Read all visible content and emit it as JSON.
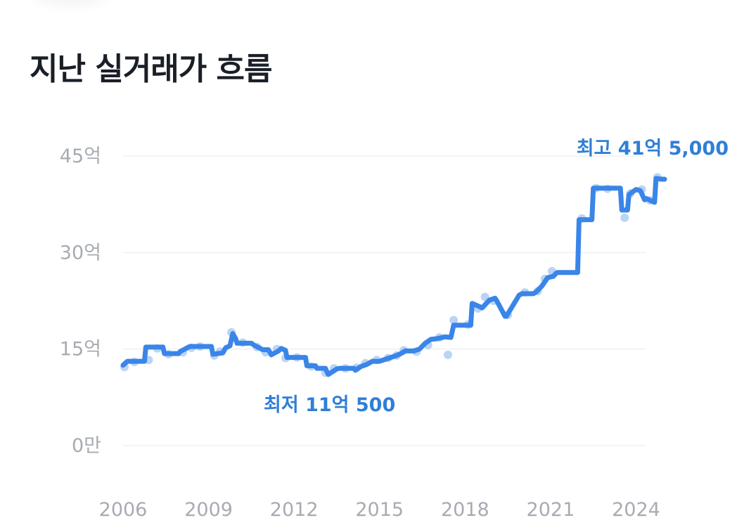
{
  "header": {
    "title": "지난 실거래가 흐름"
  },
  "chart_data": {
    "type": "line",
    "title": "지난 실거래가 흐름",
    "xlabel": "",
    "ylabel": "",
    "y_unit": "억",
    "xlim": [
      2006,
      2025
    ],
    "ylim": [
      0,
      45
    ],
    "grid": true,
    "x_ticks": [
      {
        "value": 2006,
        "label": "2006"
      },
      {
        "value": 2009,
        "label": "2009"
      },
      {
        "value": 2012,
        "label": "2012"
      },
      {
        "value": 2015,
        "label": "2015"
      },
      {
        "value": 2018,
        "label": "2018"
      },
      {
        "value": 2021,
        "label": "2021"
      },
      {
        "value": 2024,
        "label": "2024"
      }
    ],
    "y_ticks": [
      {
        "value": 0,
        "label": "0만"
      },
      {
        "value": 15,
        "label": "15억"
      },
      {
        "value": 30,
        "label": "30억"
      },
      {
        "value": 45,
        "label": "45억"
      }
    ],
    "colors": {
      "line": "#3a85e8",
      "points": "#aecdf3",
      "annotation": "#2f7fd6",
      "grid": "#eef0f2",
      "tick": "#a7abb2"
    },
    "series": [
      {
        "x": [
          2006.0,
          2006.15,
          2006.5,
          2006.75,
          2006.8,
          2007.4,
          2007.45,
          2007.95,
          2008.0,
          2008.3,
          2008.35,
          2009.1,
          2009.15,
          2009.5,
          2009.6,
          2009.75,
          2009.85,
          2009.95,
          2010.0,
          2010.5,
          2010.6,
          2010.9,
          2011.1,
          2011.2,
          2011.45,
          2011.55,
          2011.7,
          2011.75,
          2012.4,
          2012.45,
          2012.75,
          2012.8,
          2013.0,
          2013.1,
          2013.2,
          2013.5,
          2013.6,
          2014.1,
          2014.15,
          2014.35,
          2014.55,
          2014.75,
          2015.0,
          2015.2,
          2015.4,
          2015.6,
          2015.75,
          2015.9,
          2016.2,
          2016.4,
          2016.6,
          2016.8,
          2017.0,
          2017.3,
          2017.5,
          2017.6,
          2017.9,
          2018.2,
          2018.25,
          2018.5,
          2018.6,
          2018.85,
          2019.05,
          2019.1,
          2019.4,
          2019.45,
          2019.9,
          2020.0,
          2020.4,
          2020.5,
          2020.7,
          2020.9,
          2021.1,
          2021.2,
          2021.25,
          2021.95,
          2022.0,
          2022.45,
          2022.5,
          2023.45,
          2023.5,
          2023.7,
          2023.75,
          2023.9,
          2024.0,
          2024.15,
          2024.3,
          2024.35,
          2024.55,
          2024.65,
          2024.7,
          2024.9,
          2025.0
        ],
        "y": [
          12.5,
          13.1,
          13.1,
          13.1,
          15.3,
          15.3,
          14.3,
          14.3,
          14.6,
          15.3,
          15.4,
          15.4,
          14.2,
          14.4,
          15.2,
          15.5,
          17.4,
          16.6,
          15.9,
          15.9,
          15.6,
          14.9,
          14.9,
          14.1,
          14.7,
          15.1,
          14.8,
          13.7,
          13.7,
          12.4,
          12.4,
          12.0,
          12.0,
          12.0,
          11.05,
          11.9,
          12.0,
          12.0,
          11.7,
          12.3,
          12.6,
          13.1,
          13.1,
          13.4,
          13.7,
          14.0,
          14.3,
          14.7,
          14.7,
          15.0,
          15.9,
          16.5,
          16.6,
          16.9,
          16.8,
          18.7,
          18.7,
          18.7,
          22.1,
          21.6,
          21.4,
          22.6,
          22.9,
          22.6,
          20.1,
          20.1,
          23.4,
          23.6,
          23.6,
          23.9,
          24.8,
          26.1,
          26.3,
          26.8,
          26.9,
          26.9,
          35.1,
          35.1,
          40.0,
          40.0,
          36.6,
          36.6,
          39.0,
          39.5,
          39.8,
          39.6,
          38.2,
          38.4,
          38.0,
          37.8,
          41.5,
          41.4,
          41.4
        ]
      }
    ],
    "scatter_points": {
      "x": [
        2006.05,
        2006.4,
        2006.9,
        2007.2,
        2007.6,
        2008.1,
        2008.4,
        2008.7,
        2009.2,
        2009.4,
        2009.8,
        2010.2,
        2010.7,
        2011.0,
        2011.4,
        2011.7,
        2012.1,
        2012.6,
        2013.1,
        2013.4,
        2013.8,
        2014.2,
        2014.5,
        2014.9,
        2015.3,
        2015.6,
        2015.85,
        2016.3,
        2016.7,
        2017.1,
        2017.4,
        2017.6,
        2018.1,
        2018.45,
        2018.7,
        2019.0,
        2019.5,
        2020.1,
        2020.55,
        2020.8,
        2021.05,
        2022.1,
        2022.6,
        2023.0,
        2023.6,
        2023.8,
        2024.2,
        2024.5,
        2024.75
      ],
      "y": [
        12.2,
        13.0,
        13.3,
        15.1,
        14.2,
        14.5,
        15.2,
        15.4,
        14.0,
        14.6,
        17.6,
        16.0,
        15.3,
        14.5,
        15.0,
        13.6,
        13.7,
        12.3,
        11.3,
        12.0,
        12.0,
        12.1,
        12.8,
        13.3,
        13.6,
        14.0,
        14.8,
        14.6,
        15.6,
        16.8,
        14.1,
        19.5,
        18.8,
        21.3,
        23.1,
        22.5,
        20.3,
        23.8,
        24.0,
        25.9,
        27.1,
        35.3,
        40.0,
        39.9,
        35.4,
        39.2,
        39.8,
        38.1,
        41.7
      ]
    },
    "annotations": [
      {
        "type": "max",
        "x": 2024.7,
        "y": 41.5,
        "label": "최고 41억 5,000"
      },
      {
        "type": "min",
        "x": 2013.2,
        "y": 11.05,
        "label": "최저 11억 500"
      }
    ]
  }
}
